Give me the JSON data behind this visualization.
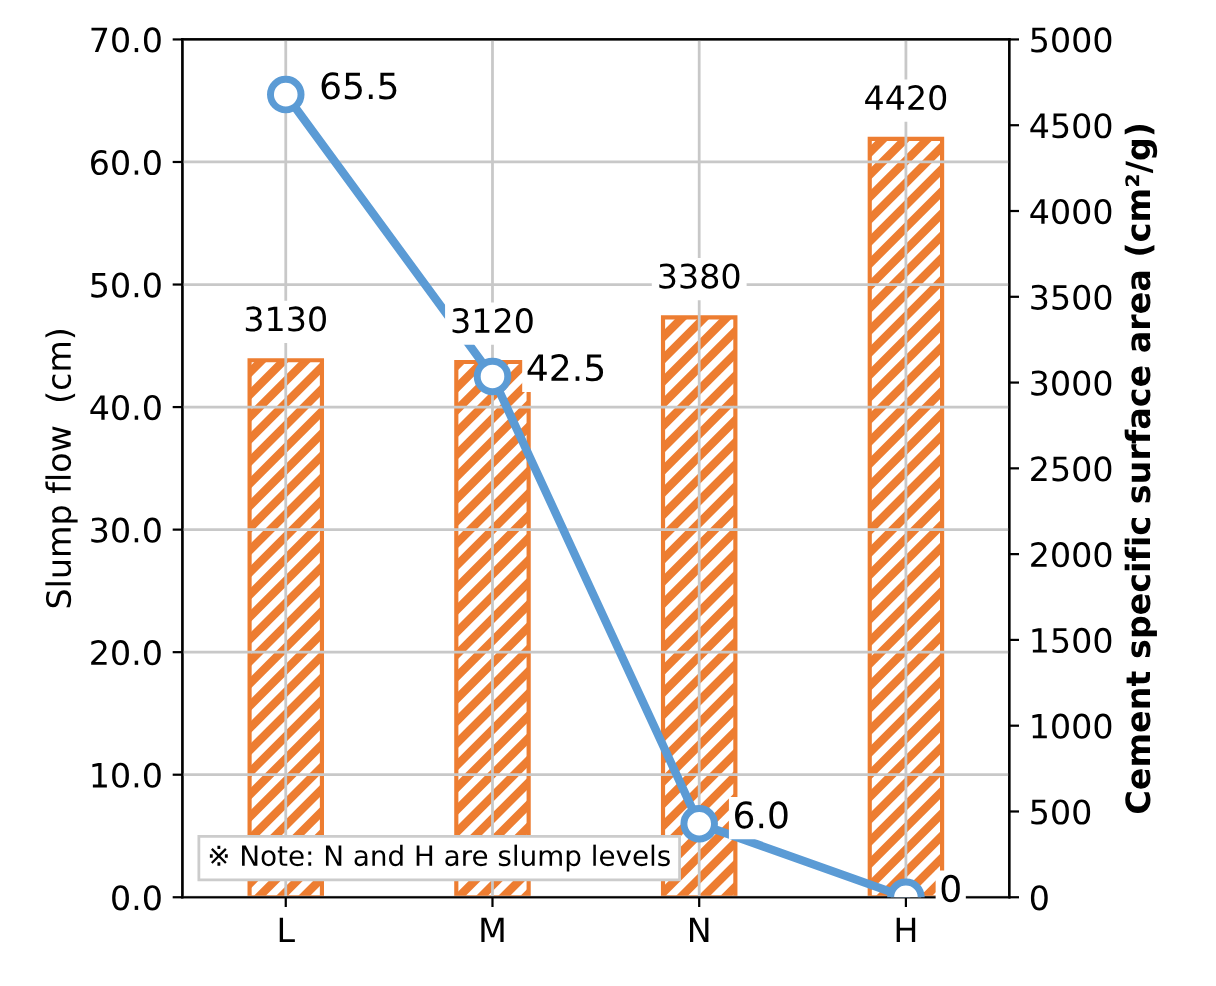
{
  "chart_data": {
    "type": "bar",
    "categories": [
      "L",
      "M",
      "N",
      "H"
    ],
    "ylabel": "Slump flow  (cm)",
    "y2label": "Cement specific surface area (cm²/g)",
    "series": [
      {
        "axis": "y2",
        "color": "#ed7d31",
        "values": [
          3130,
          3120,
          3380,
          4420
        ],
        "value_labels": [
          "3130",
          "3120",
          "3380",
          "4420"
        ]
      },
      {
        "type": "line",
        "axis": "y",
        "color": "#5b9bd5",
        "values": [
          65.5,
          42.5,
          6.0,
          0
        ],
        "value_labels": [
          "65.5",
          "42.5",
          "6.0",
          "0"
        ],
        "marker": "circle"
      }
    ],
    "ylim": [
      0,
      70
    ],
    "yticks": [
      {
        "value": 0,
        "label": "0.0"
      },
      {
        "value": 10,
        "label": "10.0"
      },
      {
        "value": 20,
        "label": "20.0"
      },
      {
        "value": 30,
        "label": "30.0"
      },
      {
        "value": 40,
        "label": "40.0"
      },
      {
        "value": 50,
        "label": "50.0"
      },
      {
        "value": 60,
        "label": "60.0"
      },
      {
        "value": 70,
        "label": "70.0"
      }
    ],
    "y2lim": [
      0,
      5000
    ],
    "y2ticks": [
      0,
      500,
      1000,
      1500,
      2000,
      2500,
      3000,
      3500,
      4000,
      4500,
      5000
    ],
    "grid": true,
    "legend": false,
    "annotations": [
      "※ Note: N and H are slump levels"
    ]
  }
}
